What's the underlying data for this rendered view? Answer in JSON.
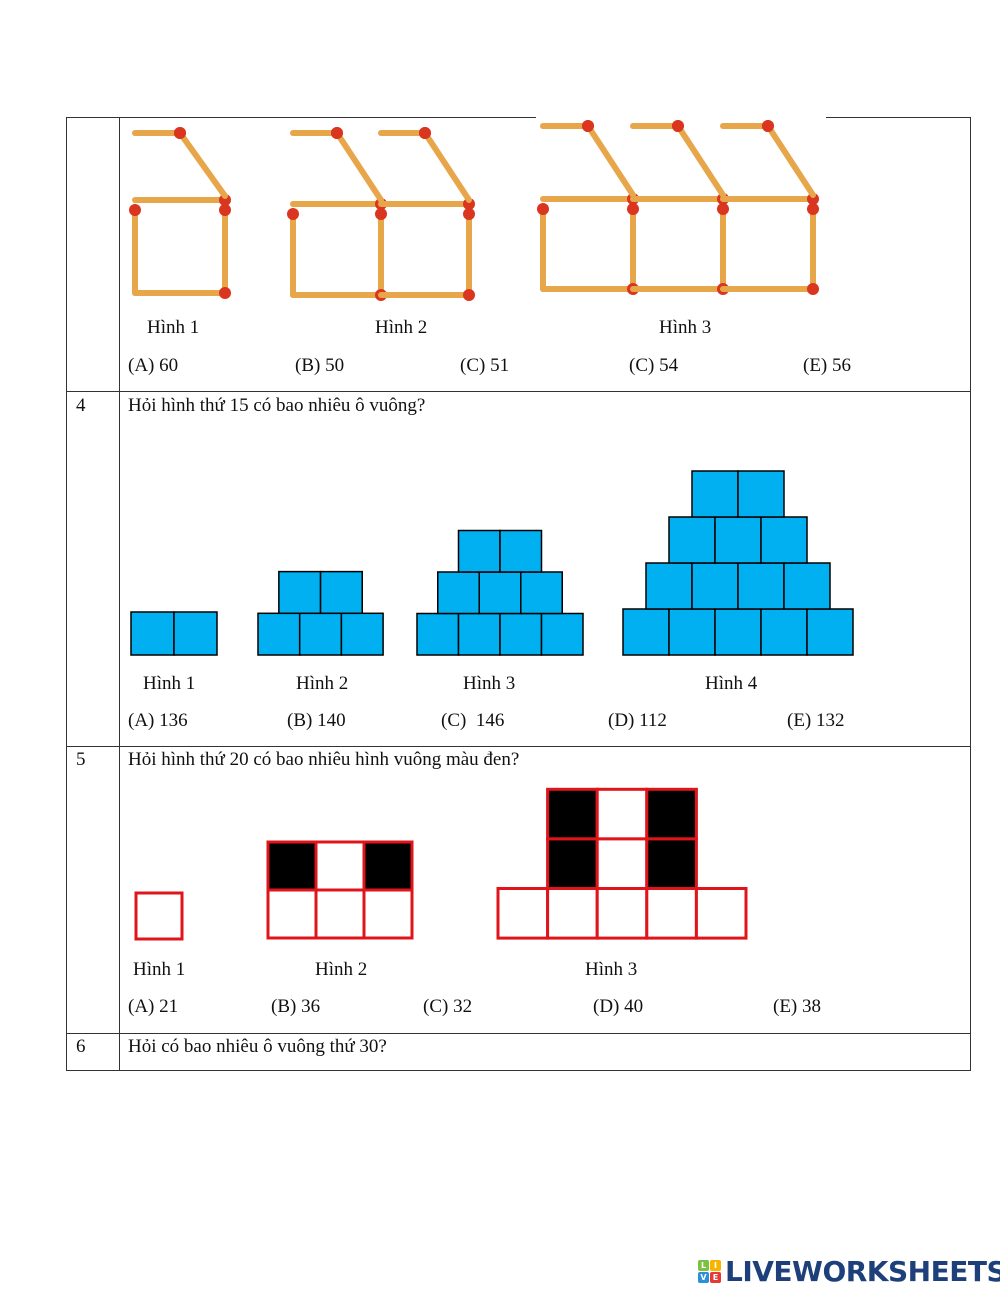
{
  "rows": [
    {
      "number": "",
      "question": "",
      "figure_labels": [
        "Hình 1",
        "Hình 2",
        "Hình 3"
      ],
      "answers": [
        "(A) 60",
        "(B) 50",
        "(C) 51",
        "(C) 54",
        "(E) 56"
      ]
    },
    {
      "number": "4",
      "question": "Hỏi hình thứ 15 có bao nhiêu ô vuông?",
      "figure_labels": [
        "Hình 1",
        "Hình 2",
        "Hình 3",
        "Hình 4"
      ],
      "answers": [
        "(A) 136",
        "(B) 140",
        "(C)  146",
        "(D) 112",
        "(E) 132"
      ]
    },
    {
      "number": "5",
      "question": "Hỏi hình thứ 20 có bao nhiêu hình vuông màu đen?",
      "figure_labels": [
        "Hình 1",
        "Hình 2",
        "Hình 3"
      ],
      "answers": [
        "(A) 21",
        "(B) 36",
        "(C) 32",
        "(D) 40",
        "(E) 38"
      ]
    },
    {
      "number": "6",
      "question": "Hỏi có bao nhiêu ô vuông thứ 30?"
    }
  ],
  "colors": {
    "matchstick": "#e8a64a",
    "match_head": "#d9351f",
    "blue_square": "#00b0f0",
    "red_outline": "#e0141b",
    "black_square": "#000000"
  },
  "logo": {
    "text": "LIVEWORKSHEETS",
    "letters": [
      "L",
      "I",
      "V",
      "E"
    ]
  }
}
